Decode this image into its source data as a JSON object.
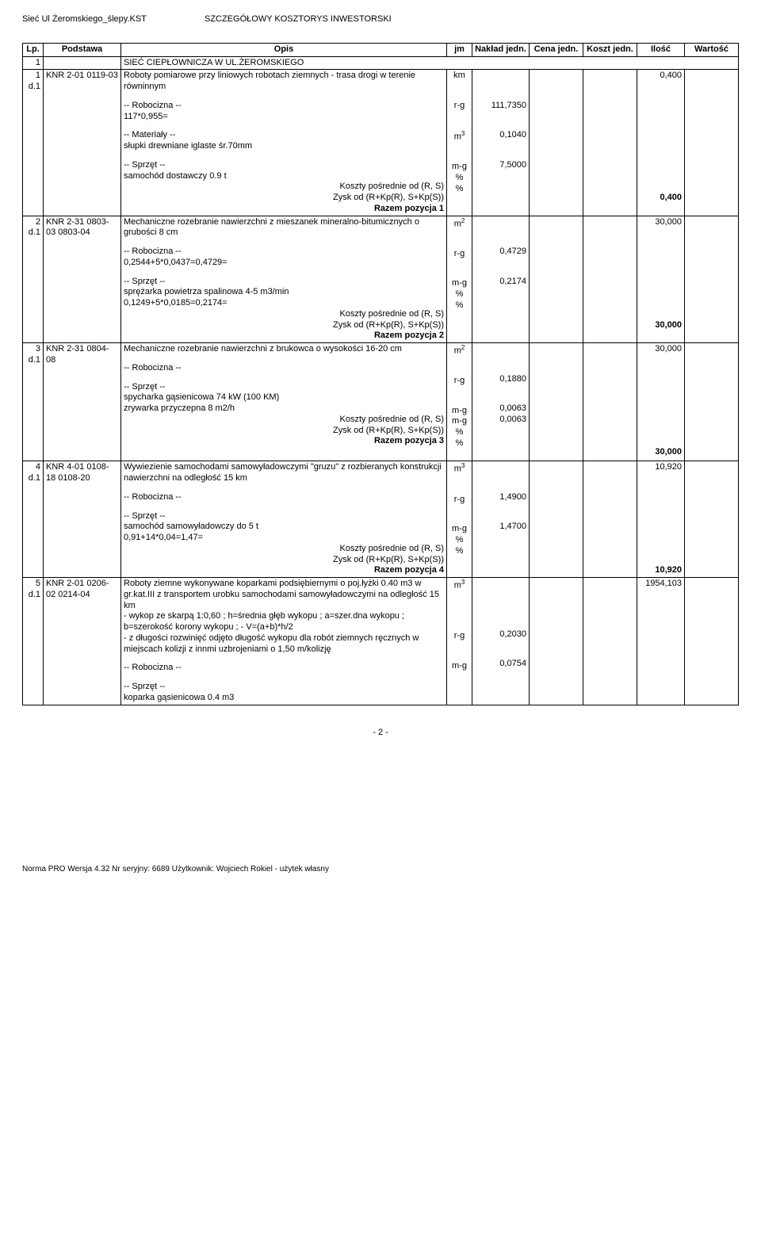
{
  "header": {
    "left": "Sieć Ul Żeromskiego_ślepy.KST",
    "center": "SZCZEGÓŁOWY KOSZTORYS INWESTORSKI"
  },
  "columns": [
    "Lp.",
    "Podstawa",
    "Opis",
    "jm",
    "Nakład jedn.",
    "Cena jedn.",
    "Koszt jedn.",
    "Ilość",
    "Wartość"
  ],
  "section": {
    "lp": "1",
    "title": "SIEĆ CIEPŁOWNICZA W UL.ŻEROMSKIEGO"
  },
  "rows": [
    {
      "lp": "1",
      "d": "d.1",
      "base": "KNR 2-01 0119-03",
      "desc_main": "Roboty pomiarowe przy liniowych robotach ziemnych - trasa drogi w terenie równinnym",
      "jm": "km",
      "ilosc": "0,400",
      "blocks": [
        {
          "label": "-- Robocizna --",
          "lines": [
            [
              "117*0,955=",
              "r-g",
              "111,7350"
            ]
          ]
        },
        {
          "label": "-- Materiały --",
          "lines": [
            [
              "słupki drewniane iglaste śr.70mm",
              "m3",
              "0,1040"
            ]
          ]
        },
        {
          "label": "-- Sprzęt --",
          "lines": [
            [
              "samochód dostawczy 0.9 t",
              "m-g",
              "7,5000"
            ]
          ]
        }
      ],
      "tail": [
        "Koszty pośrednie od (R, S)",
        "Zysk od (R+Kp(R), S+Kp(S))",
        "Razem pozycja 1"
      ],
      "tail_jm": [
        "%",
        "%",
        ""
      ],
      "razem": "0,400"
    },
    {
      "lp": "2",
      "d": "d.1",
      "base": "KNR 2-31 0803-03 0803-04",
      "desc_main": "Mechaniczne rozebranie nawierzchni z mieszanek mineralno-bitumicznych o grubości 8 cm",
      "jm": "m2",
      "ilosc": "30,000",
      "blocks": [
        {
          "label": "-- Robocizna --",
          "lines": [
            [
              "0,2544+5*0,0437=0,4729=",
              "r-g",
              "0,4729"
            ]
          ]
        },
        {
          "label": "-- Sprzęt --",
          "lines": [
            [
              "sprężarka powietrza spalinowa 4-5 m3/min",
              "m-g",
              "0,2174"
            ],
            [
              "0,1249+5*0,0185=0,2174=",
              "",
              ""
            ]
          ]
        }
      ],
      "tail": [
        "Koszty pośrednie od (R, S)",
        "Zysk od (R+Kp(R), S+Kp(S))",
        "Razem pozycja 2"
      ],
      "tail_jm": [
        "%",
        "%",
        ""
      ],
      "razem": "30,000"
    },
    {
      "lp": "3",
      "d": "d.1",
      "base": "KNR 2-31 0804-08",
      "desc_main": "Mechaniczne rozebranie nawierzchni z brukowca o wysokości 16-20 cm",
      "jm": "m2",
      "ilosc": "30,000",
      "blocks": [
        {
          "label": "-- Robocizna --",
          "lines": [
            [
              "",
              "r-g",
              "0,1880"
            ]
          ]
        },
        {
          "label": "-- Sprzęt --",
          "lines": [
            [
              "spycharka gąsienicowa 74 kW (100 KM)",
              "m-g",
              "0,0063"
            ],
            [
              "zrywarka przyczepna 8 m2/h",
              "m-g",
              "0,0063"
            ]
          ]
        }
      ],
      "tail": [
        "Koszty pośrednie od (R, S)",
        "Zysk od (R+Kp(R), S+Kp(S))",
        "Razem pozycja 3"
      ],
      "tail_jm": [
        "%",
        "%",
        ""
      ],
      "razem": "30,000"
    },
    {
      "lp": "4",
      "d": "d.1",
      "base": "KNR 4-01 0108-18 0108-20",
      "desc_main": "Wywiezienie samochodami samowyładowczymi \"gruzu\" z rozbieranych konstrukcji nawierzchni na odległość 15 km",
      "jm": "m3",
      "ilosc": "10,920",
      "blocks": [
        {
          "label": "-- Robocizna --",
          "lines": [
            [
              "",
              "r-g",
              "1,4900"
            ]
          ]
        },
        {
          "label": "-- Sprzęt --",
          "lines": [
            [
              "samochód samowyładowczy do 5 t",
              "m-g",
              "1,4700"
            ],
            [
              "0,91+14*0,04=1,47=",
              "",
              ""
            ]
          ]
        }
      ],
      "tail": [
        "Koszty pośrednie od (R, S)",
        "Zysk od (R+Kp(R), S+Kp(S))",
        "Razem pozycja 4"
      ],
      "tail_jm": [
        "%",
        "%",
        ""
      ],
      "razem": "10,920"
    },
    {
      "lp": "5",
      "d": "d.1",
      "base": "KNR 2-01 0206-02 0214-04",
      "desc_main": "Roboty ziemne wykonywane koparkami podsiębiernymi o poj.łyżki 0.40 m3 w gr.kat.III z transportem urobku samochodami samowyładowczymi na odległość 15 km\n - wykop ze skarpą 1:0,60 ;  h=średnia głęb wykopu ; a=szer.dna wykopu ; b=szerokość korony wykopu ;   -  V=(a+b)*h/2\n - z długości rozwinięć odjęto długość wykopu dla robót ziemnych ręcznych w miejscach kolizji z innmi   uzbrojeniami o 1,50 m/kolizję",
      "jm": "m3",
      "ilosc": "1954,103",
      "blocks": [
        {
          "label": "-- Robocizna --",
          "lines": [
            [
              "",
              "r-g",
              "0,2030"
            ]
          ]
        },
        {
          "label": "-- Sprzęt --",
          "lines": [
            [
              "koparka gąsienicowa 0.4 m3",
              "m-g",
              "0,0754"
            ]
          ]
        }
      ],
      "tail": [],
      "tail_jm": [],
      "razem": ""
    }
  ],
  "page_number": "- 2 -",
  "footer_note": "Norma PRO Wersja 4.32 Nr seryjny: 6689 Użytkownik: Wojciech Rokiel - użytek własny"
}
